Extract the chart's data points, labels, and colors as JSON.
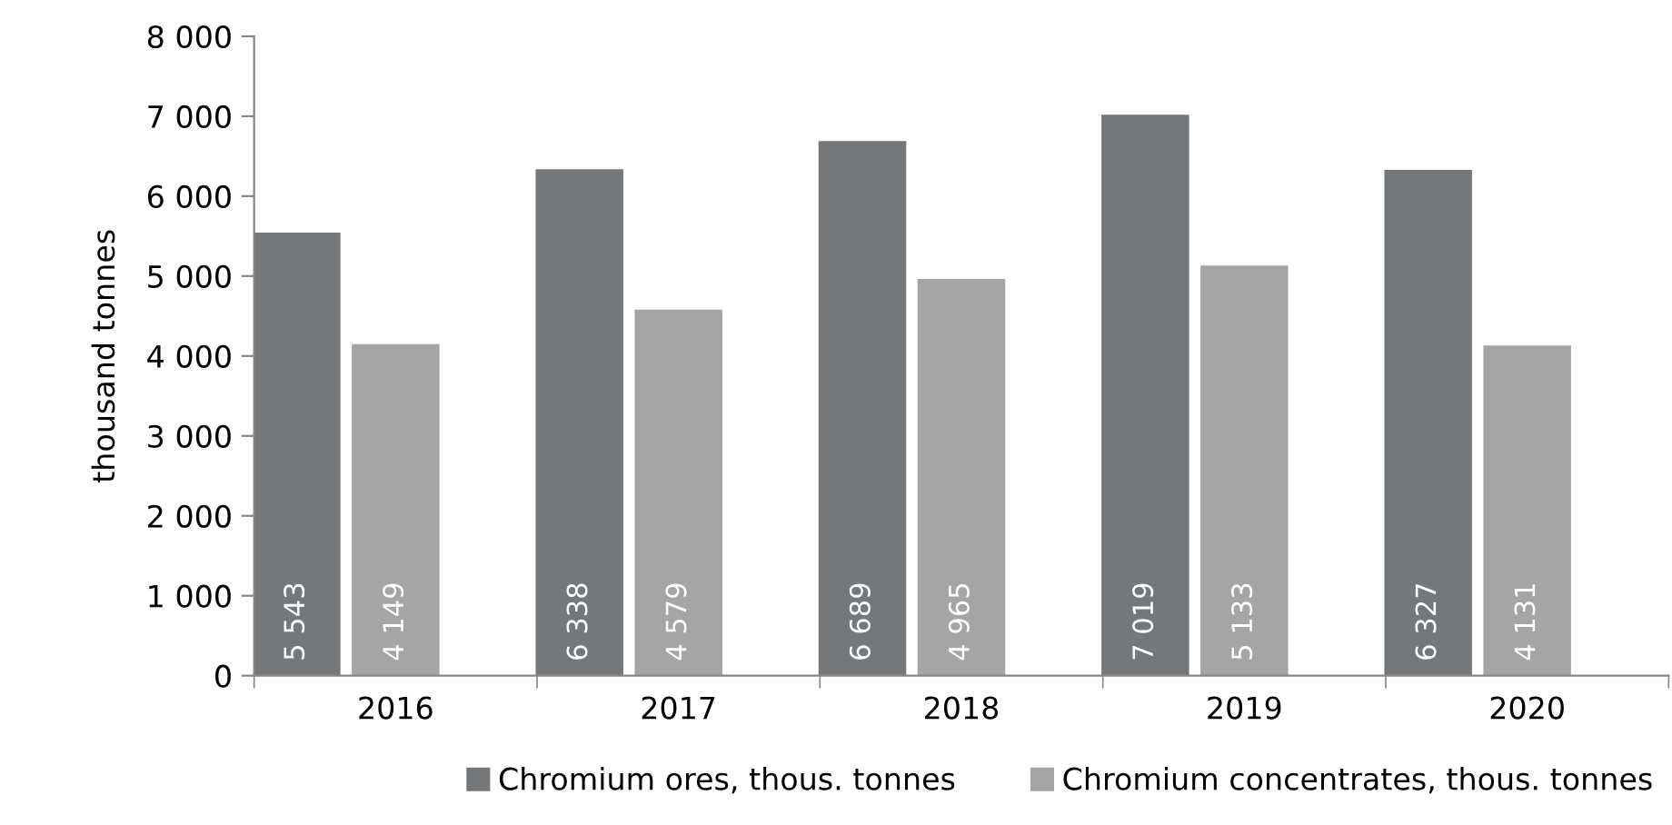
{
  "chart_data": {
    "type": "bar",
    "ylabel": "thousand tonnes",
    "categories": [
      "2016",
      "2017",
      "2018",
      "2019",
      "2020"
    ],
    "series": [
      {
        "name": "Chromium ores, thous. tonnes",
        "color": "#75787b",
        "values": [
          5543,
          6338,
          6689,
          7019,
          6327
        ],
        "value_labels": [
          "5 543",
          "6 338",
          "6 689",
          "7 019",
          "6 327"
        ]
      },
      {
        "name": "Chromium concentrates, thous. tonnes",
        "color": "#a5a5a5",
        "values": [
          4149,
          4579,
          4965,
          5133,
          4131
        ],
        "value_labels": [
          "4 149",
          "4 579",
          "4 965",
          "5 133",
          "4 131"
        ]
      }
    ],
    "ylim": [
      0,
      8000
    ],
    "yticks": [
      0,
      {
        "value": 1000,
        "label": "1 000"
      },
      {
        "value": 2000,
        "label": "2 000"
      },
      {
        "value": 3000,
        "label": "3 000"
      },
      {
        "value": 4000,
        "label": "4 000"
      },
      {
        "value": 5000,
        "label": "5 000"
      },
      {
        "value": 6000,
        "label": "6 000"
      },
      {
        "value": 7000,
        "label": "7 000"
      },
      {
        "value": 8000,
        "label": "8 000"
      }
    ],
    "grid": false,
    "legend": "bottom"
  }
}
